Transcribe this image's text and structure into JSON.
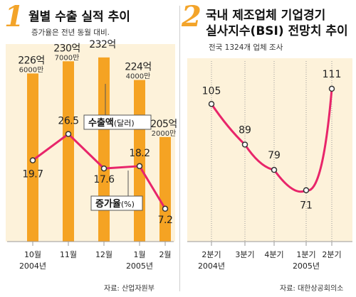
{
  "panel1": {
    "number": "1",
    "title": "월별 수출 실적 추이",
    "subtitle": "증가율은 전년 동월 대비.",
    "source": "자료: 산업자원부",
    "legend_bar": {
      "main": "수출액",
      "unit": "(달러)"
    },
    "legend_line": {
      "main": "증가율",
      "unit": "(%)"
    }
  },
  "panel2": {
    "number": "2",
    "title_line1": "국내 제조업체 기업경기",
    "title_line2": "실사지수(BSI) 전망치 추이",
    "subtitle": "전국 1324개 업체 조사",
    "source": "자료: 대한상공회의소"
  },
  "chart_data": [
    {
      "type": "bar",
      "categories": [
        "10월",
        "11월",
        "12월",
        "1월",
        "2월"
      ],
      "year_labels": [
        "2004년",
        "2005년"
      ],
      "series": [
        {
          "name": "수출액(달러)",
          "type": "bar",
          "values": [
            226.6,
            230.7,
            232,
            224.4,
            205.2
          ],
          "labels_main": [
            "226억",
            "230억",
            "232억",
            "224억",
            "205억"
          ],
          "labels_sub": [
            "6000만",
            "7000만",
            "",
            "4000만",
            "2000만"
          ]
        },
        {
          "name": "증가율(%)",
          "type": "line",
          "values": [
            19.7,
            26.5,
            17.6,
            18.2,
            7.2
          ],
          "labels": [
            "19.7",
            "26.5",
            "17.6",
            "18.2",
            "7.2"
          ]
        }
      ],
      "colors": {
        "bar": "#f5a323",
        "line": "#e8256a",
        "background": "#fdf2da"
      }
    },
    {
      "type": "line",
      "categories": [
        "2분기",
        "3분기",
        "4분기",
        "1분기",
        "2분기"
      ],
      "year_labels": [
        "2004년",
        "2005년"
      ],
      "series": [
        {
          "name": "BSI 전망치",
          "values": [
            105,
            89,
            79,
            71,
            111
          ],
          "labels": [
            "105",
            "89",
            "79",
            "71",
            "111"
          ]
        }
      ],
      "colors": {
        "line": "#e8256a",
        "background": "#fdf2da"
      }
    }
  ]
}
